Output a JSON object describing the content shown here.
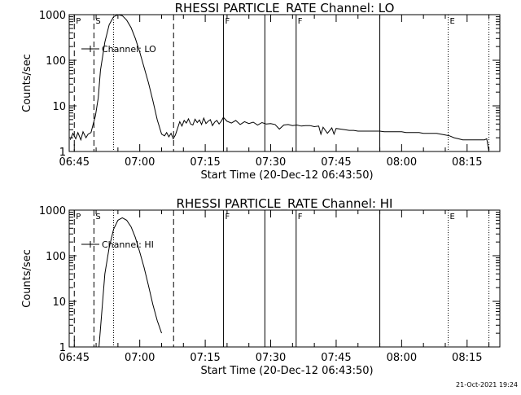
{
  "footer": {
    "timestamp": "21-Oct-2021 19:24"
  },
  "colors": {
    "background": "#ffffff",
    "foreground": "#000000"
  },
  "chart_data": [
    {
      "type": "line",
      "title": "RHESSI PARTICLE_RATE Channel: LO",
      "xlabel": "Start Time (20-Dec-12 06:43:50)",
      "ylabel": "Counts/sec",
      "yscale": "log",
      "xlim": [
        "06:43:50",
        "08:22:30"
      ],
      "ylim": [
        1,
        1000
      ],
      "x_ticks": [
        "06:45",
        "07:00",
        "07:15",
        "07:30",
        "07:45",
        "08:00",
        "08:15"
      ],
      "y_ticks": [
        "1",
        "10",
        "100",
        "1000"
      ],
      "legend": {
        "label": "Channel: LO",
        "position": "top-left"
      },
      "markers": [
        {
          "time": "06:45:00",
          "label": "P",
          "style": "dashed"
        },
        {
          "time": "06:49:30",
          "label": "S",
          "style": "dashed"
        },
        {
          "time": "06:54:00",
          "label": "",
          "style": "dotted"
        },
        {
          "time": "07:07:45",
          "label": "",
          "style": "dashed"
        },
        {
          "time": "07:19:10",
          "label": "F",
          "style": "solid"
        },
        {
          "time": "07:28:40",
          "label": "",
          "style": "solid"
        },
        {
          "time": "07:35:50",
          "label": "F",
          "style": "solid"
        },
        {
          "time": "07:55:00",
          "label": "",
          "style": "solid"
        },
        {
          "time": "08:10:40",
          "label": "E",
          "style": "dotted"
        },
        {
          "time": "08:20:00",
          "label": "",
          "style": "dotted"
        }
      ],
      "series": [
        {
          "name": "Channel: LO",
          "x": [
            "06:44:05",
            "06:44:40",
            "06:45:20",
            "06:45:50",
            "06:46:30",
            "06:47:00",
            "06:47:40",
            "06:48:10",
            "06:48:50",
            "06:49:20",
            "06:49:50",
            "06:50:30",
            "06:51:00",
            "06:52:00",
            "06:53:00",
            "06:54:00",
            "06:55:00",
            "06:56:00",
            "06:57:00",
            "06:58:00",
            "06:59:00",
            "07:00:00",
            "07:01:00",
            "07:02:00",
            "07:03:00",
            "07:04:00",
            "07:05:00",
            "07:05:40",
            "07:06:10",
            "07:06:40",
            "07:07:10",
            "07:07:40",
            "07:08:10",
            "07:08:40",
            "07:09:10",
            "07:09:40",
            "07:10:10",
            "07:10:40",
            "07:11:10",
            "07:11:40",
            "07:12:10",
            "07:12:40",
            "07:13:10",
            "07:13:40",
            "07:14:10",
            "07:14:40",
            "07:15:10",
            "07:15:40",
            "07:16:10",
            "07:16:40",
            "07:17:10",
            "07:17:40",
            "07:18:10",
            "07:18:40",
            "07:19:10",
            "07:20:00",
            "07:21:00",
            "07:22:00",
            "07:23:00",
            "07:24:00",
            "07:25:00",
            "07:26:00",
            "07:27:00",
            "07:28:00",
            "07:29:00",
            "07:30:00",
            "07:31:00",
            "07:32:00",
            "07:33:00",
            "07:34:00",
            "07:35:00",
            "07:36:00",
            "07:37:00",
            "07:38:00",
            "07:39:00",
            "07:40:00",
            "07:41:00",
            "07:41:30",
            "07:42:00",
            "07:43:00",
            "07:44:00",
            "07:44:30",
            "07:45:00",
            "07:46:00",
            "07:47:00",
            "07:48:00",
            "07:49:00",
            "07:50:00",
            "07:51:00",
            "07:52:00",
            "07:53:00",
            "07:54:00",
            "07:55:00",
            "07:56:00",
            "07:57:00",
            "07:58:00",
            "07:59:00",
            "08:00:00",
            "08:01:00",
            "08:02:00",
            "08:03:00",
            "08:04:00",
            "08:05:00",
            "08:06:00",
            "08:07:00",
            "08:08:00",
            "08:09:00",
            "08:10:00",
            "08:11:00",
            "08:12:00",
            "08:13:00",
            "08:14:00",
            "08:15:00",
            "08:16:00",
            "08:17:00",
            "08:18:00",
            "08:19:00",
            "08:19:30",
            "08:20:00"
          ],
          "y": [
            1.8,
            2.5,
            1.9,
            2.6,
            1.8,
            2.7,
            2.0,
            2.4,
            2.6,
            4.0,
            6.0,
            15,
            60,
            250,
            600,
            900,
            1000,
            950,
            760,
            520,
            300,
            150,
            70,
            32,
            13,
            5.0,
            2.4,
            2.2,
            2.6,
            2.1,
            2.5,
            1.9,
            2.3,
            3.2,
            4.5,
            3.6,
            4.8,
            4.2,
            5.2,
            4.0,
            3.8,
            5.1,
            4.3,
            4.9,
            3.9,
            5.4,
            4.1,
            4.6,
            5.0,
            3.7,
            4.4,
            4.8,
            4.0,
            4.6,
            5.6,
            4.6,
            4.2,
            4.8,
            3.9,
            4.5,
            4.1,
            4.4,
            3.8,
            4.3,
            4.0,
            4.1,
            3.9,
            3.1,
            3.8,
            3.9,
            3.7,
            3.8,
            3.6,
            3.7,
            3.7,
            3.5,
            3.6,
            2.4,
            3.4,
            2.5,
            3.3,
            2.4,
            3.2,
            3.1,
            3.0,
            2.9,
            2.9,
            2.8,
            2.8,
            2.8,
            2.8,
            2.8,
            2.8,
            2.7,
            2.7,
            2.7,
            2.7,
            2.7,
            2.6,
            2.6,
            2.6,
            2.6,
            2.5,
            2.5,
            2.5,
            2.5,
            2.4,
            2.3,
            2.2,
            2.0,
            1.9,
            1.8,
            1.8,
            1.8,
            1.8,
            1.8,
            1.8,
            1.9,
            1.0
          ]
        }
      ]
    },
    {
      "type": "line",
      "title": "RHESSI PARTICLE_RATE Channel: HI",
      "xlabel": "Start Time (20-Dec-12 06:43:50)",
      "ylabel": "Counts/sec",
      "yscale": "log",
      "xlim": [
        "06:43:50",
        "08:22:30"
      ],
      "ylim": [
        1,
        1000
      ],
      "x_ticks": [
        "06:45",
        "07:00",
        "07:15",
        "07:30",
        "07:45",
        "08:00",
        "08:15"
      ],
      "y_ticks": [
        "1",
        "10",
        "100",
        "1000"
      ],
      "legend": {
        "label": "Channel: HI",
        "position": "top-left"
      },
      "markers": [
        {
          "time": "06:45:00",
          "label": "P",
          "style": "dashed"
        },
        {
          "time": "06:49:30",
          "label": "S",
          "style": "dashed"
        },
        {
          "time": "06:54:00",
          "label": "",
          "style": "dotted"
        },
        {
          "time": "07:07:45",
          "label": "",
          "style": "dashed"
        },
        {
          "time": "07:19:10",
          "label": "F",
          "style": "solid"
        },
        {
          "time": "07:28:40",
          "label": "",
          "style": "solid"
        },
        {
          "time": "07:35:50",
          "label": "F",
          "style": "solid"
        },
        {
          "time": "07:55:00",
          "label": "",
          "style": "solid"
        },
        {
          "time": "08:10:40",
          "label": "E",
          "style": "dotted"
        },
        {
          "time": "08:20:00",
          "label": "",
          "style": "dotted"
        }
      ],
      "series": [
        {
          "name": "Channel: HI",
          "x": [
            "06:50:40",
            "06:51:00",
            "06:51:30",
            "06:52:00",
            "06:53:00",
            "06:54:00",
            "06:55:00",
            "06:56:00",
            "06:57:00",
            "06:58:00",
            "06:59:00",
            "07:00:00",
            "07:01:00",
            "07:02:00",
            "07:03:00",
            "07:04:00",
            "07:05:00"
          ],
          "y": [
            1.0,
            2.5,
            10,
            40,
            150,
            380,
            600,
            680,
            600,
            430,
            250,
            120,
            55,
            22,
            8.5,
            3.8,
            2.0
          ]
        }
      ]
    }
  ]
}
